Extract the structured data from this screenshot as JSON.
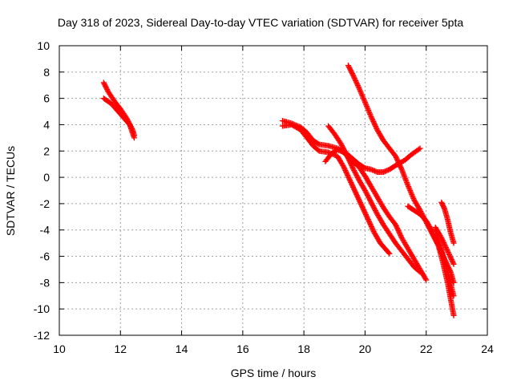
{
  "chart_data": {
    "type": "scatter",
    "title": "Day 318 of 2023, Sidereal Day-to-day VTEC variation (SDTVAR) for receiver 5pta",
    "xlabel": "GPS time / hours",
    "ylabel": "SDTVAR / TECUs",
    "xlim": [
      10,
      24
    ],
    "ylim": [
      -12,
      10
    ],
    "xticks": [
      "10",
      "12",
      "14",
      "16",
      "18",
      "20",
      "22",
      "24"
    ],
    "yticks": [
      "10",
      "8",
      "6",
      "4",
      "2",
      "0",
      "-2",
      "-4",
      "-6",
      "-8",
      "-10",
      "-12"
    ],
    "grid": true,
    "marker": "+",
    "color": "#ff0000",
    "tracks": [
      {
        "x": [
          11.45,
          11.6,
          11.8,
          12.0,
          12.2,
          12.4,
          12.45
        ],
        "y": [
          7.2,
          6.5,
          5.8,
          5.2,
          4.5,
          3.6,
          3.2
        ]
      },
      {
        "x": [
          11.45,
          11.7,
          12.0,
          12.3,
          12.45
        ],
        "y": [
          6.0,
          5.6,
          4.8,
          4.0,
          3.0
        ]
      },
      {
        "x": [
          17.3,
          17.6,
          17.9,
          18.1,
          18.3,
          18.5,
          18.8,
          19.1,
          19.4,
          19.6,
          19.8,
          20.0,
          20.2,
          20.4,
          20.6,
          20.8,
          21.0,
          21.3,
          21.5,
          21.8
        ],
        "y": [
          4.3,
          4.1,
          3.8,
          3.4,
          2.8,
          2.5,
          2.4,
          2.2,
          1.8,
          1.4,
          1.0,
          0.7,
          0.6,
          0.4,
          0.4,
          0.6,
          0.9,
          1.3,
          1.7,
          2.2
        ]
      },
      {
        "x": [
          17.3,
          17.6,
          17.9,
          18.1,
          18.3,
          18.5,
          18.8,
          19.1,
          19.3,
          19.5,
          19.7,
          19.9,
          20.1,
          20.3,
          20.5,
          20.8
        ],
        "y": [
          3.9,
          4.0,
          3.6,
          3.0,
          2.4,
          2.0,
          1.9,
          1.6,
          0.8,
          -0.2,
          -1.2,
          -2.2,
          -3.2,
          -4.2,
          -5.0,
          -5.8
        ]
      },
      {
        "x": [
          18.8,
          19.0,
          19.2,
          19.4,
          19.6,
          19.8,
          20.0,
          20.2,
          20.4,
          20.6,
          20.8,
          21.0,
          21.2,
          21.4,
          21.6,
          21.8
        ],
        "y": [
          3.9,
          3.3,
          2.6,
          1.7,
          0.7,
          -0.2,
          -1.0,
          -1.9,
          -2.8,
          -3.6,
          -4.3,
          -5.0,
          -5.6,
          -6.2,
          -6.8,
          -7.2
        ]
      },
      {
        "x": [
          18.7,
          18.9,
          19.1,
          19.3,
          19.5,
          19.8,
          20.0,
          20.2,
          20.4,
          20.6,
          20.8,
          21.0,
          21.2,
          21.5,
          21.8,
          22.0
        ],
        "y": [
          1.2,
          1.8,
          2.1,
          1.9,
          1.4,
          0.8,
          0.1,
          -0.7,
          -1.5,
          -2.3,
          -3.0,
          -3.6,
          -4.6,
          -5.8,
          -7.0,
          -7.8
        ]
      },
      {
        "x": [
          19.45,
          19.6,
          19.8,
          20.0,
          20.2,
          20.4,
          20.6,
          20.8,
          21.0,
          21.2,
          21.4,
          21.6,
          21.8,
          22.0,
          22.2,
          22.4,
          22.6,
          22.8,
          22.9
        ],
        "y": [
          8.5,
          7.8,
          6.8,
          5.7,
          4.6,
          3.6,
          2.8,
          2.2,
          1.6,
          0.6,
          -0.6,
          -1.7,
          -2.5,
          -3.4,
          -4.3,
          -5.2,
          -6.2,
          -7.2,
          -8.0
        ]
      },
      {
        "x": [
          21.4,
          21.6,
          21.8,
          22.0,
          22.2,
          22.4,
          22.55,
          22.7,
          22.9
        ],
        "y": [
          -2.2,
          -2.5,
          -2.8,
          -3.3,
          -4.1,
          -5.2,
          -6.5,
          -8.0,
          -10.5
        ]
      },
      {
        "x": [
          22.5,
          22.6,
          22.7,
          22.8,
          22.9
        ],
        "y": [
          -1.9,
          -2.4,
          -3.2,
          -4.2,
          -5.0
        ]
      },
      {
        "x": [
          22.3,
          22.5,
          22.7,
          22.9
        ],
        "y": [
          -4.0,
          -5.5,
          -7.2,
          -9.0
        ]
      },
      {
        "x": [
          22.3,
          22.5,
          22.7,
          22.9
        ],
        "y": [
          -3.8,
          -4.6,
          -5.6,
          -6.6
        ]
      }
    ]
  }
}
